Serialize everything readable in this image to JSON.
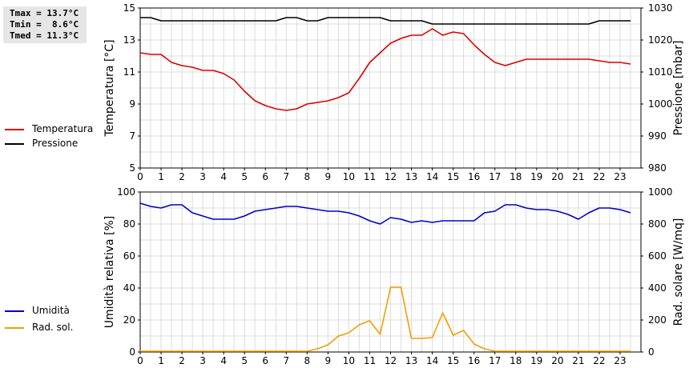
{
  "stats": {
    "tmax": "Tmax = 13.7°C",
    "tmin": "Tmin =  8.6°C",
    "tmed": "Tmed = 11.3°C"
  },
  "chart_data": [
    {
      "type": "line",
      "x_ticks": [
        "0",
        "1",
        "2",
        "3",
        "4",
        "5",
        "6",
        "7",
        "8",
        "9",
        "10",
        "11",
        "12",
        "13",
        "14",
        "15",
        "16",
        "17",
        "18",
        "19",
        "20",
        "21",
        "22",
        "23"
      ],
      "ylabel": "Temperatura [°C]",
      "ylabel_right": "Pressione [mbar]",
      "ylim": [
        5,
        15
      ],
      "y_ticks": [
        "5",
        "7",
        "9",
        "11",
        "13",
        "15"
      ],
      "ylim_right": [
        980,
        1030
      ],
      "y_ticks_right": [
        "980",
        "990",
        "1000",
        "1010",
        "1020",
        "1030"
      ],
      "grid": true,
      "legend": [
        {
          "label": "Temperatura",
          "color": "#dd0000"
        },
        {
          "label": "Pressione",
          "color": "#000000"
        }
      ],
      "series": [
        {
          "name": "Temperatura",
          "color": "#dd0000",
          "axis": "left",
          "x": [
            0,
            0.5,
            1,
            1.5,
            2,
            2.5,
            3,
            3.5,
            4,
            4.5,
            5,
            5.5,
            6,
            6.5,
            7,
            7.5,
            8,
            8.5,
            9,
            9.5,
            10,
            10.5,
            11,
            11.5,
            12,
            12.5,
            13,
            13.5,
            14,
            14.5,
            15,
            15.5,
            16,
            16.5,
            17,
            17.5,
            18,
            18.5,
            19,
            19.5,
            20,
            20.5,
            21,
            21.5,
            22,
            22.5,
            23,
            23.5
          ],
          "y": [
            12.2,
            12.1,
            12.1,
            11.6,
            11.4,
            11.3,
            11.1,
            11.1,
            10.9,
            10.5,
            9.8,
            9.2,
            8.9,
            8.7,
            8.6,
            8.7,
            9.0,
            9.1,
            9.2,
            9.4,
            9.7,
            10.6,
            11.6,
            12.2,
            12.8,
            13.1,
            13.3,
            13.3,
            13.7,
            13.3,
            13.5,
            13.4,
            12.7,
            12.1,
            11.6,
            11.4,
            11.6,
            11.8,
            11.8,
            11.8,
            11.8,
            11.8,
            11.8,
            11.8,
            11.7,
            11.6,
            11.6,
            11.5
          ]
        },
        {
          "name": "Pressione",
          "color": "#000000",
          "axis": "right",
          "x": [
            0,
            0.5,
            1,
            1.5,
            2,
            2.5,
            3,
            3.5,
            4,
            4.5,
            5,
            5.5,
            6,
            6.5,
            7,
            7.5,
            8,
            8.5,
            9,
            9.5,
            10,
            10.5,
            11,
            11.5,
            12,
            12.5,
            13,
            13.5,
            14,
            14.5,
            15,
            15.5,
            16,
            16.5,
            17,
            17.5,
            18,
            18.5,
            19,
            19.5,
            20,
            20.5,
            21,
            21.5,
            22,
            22.5,
            23,
            23.5
          ],
          "y": [
            1027,
            1027,
            1026,
            1026,
            1026,
            1026,
            1026,
            1026,
            1026,
            1026,
            1026,
            1026,
            1026,
            1026,
            1027,
            1027,
            1026,
            1026,
            1027,
            1027,
            1027,
            1027,
            1027,
            1027,
            1026,
            1026,
            1026,
            1026,
            1025,
            1025,
            1025,
            1025,
            1025,
            1025,
            1025,
            1025,
            1025,
            1025,
            1025,
            1025,
            1025,
            1025,
            1025,
            1025,
            1026,
            1026,
            1026,
            1026
          ]
        }
      ]
    },
    {
      "type": "line",
      "x_ticks": [
        "0",
        "1",
        "2",
        "3",
        "4",
        "5",
        "6",
        "7",
        "8",
        "9",
        "10",
        "11",
        "12",
        "13",
        "14",
        "15",
        "16",
        "17",
        "18",
        "19",
        "20",
        "21",
        "22",
        "23"
      ],
      "ylabel": "Umidità relativa [%]",
      "ylabel_right": "Rad. solare [W/mq]",
      "ylim": [
        0,
        100
      ],
      "y_ticks": [
        "0",
        "20",
        "40",
        "60",
        "80",
        "100"
      ],
      "ylim_right": [
        0,
        1000
      ],
      "y_ticks_right": [
        "0",
        "200",
        "400",
        "600",
        "800",
        "1000"
      ],
      "grid": true,
      "legend": [
        {
          "label": "Umidità",
          "color": "#0000cc"
        },
        {
          "label": "Rad. sol.",
          "color": "#f0a000"
        }
      ],
      "series": [
        {
          "name": "Umidità",
          "color": "#0000cc",
          "axis": "left",
          "x": [
            0,
            0.5,
            1,
            1.5,
            2,
            2.5,
            3,
            3.5,
            4,
            4.5,
            5,
            5.5,
            6,
            6.5,
            7,
            7.5,
            8,
            8.5,
            9,
            9.5,
            10,
            10.5,
            11,
            11.5,
            12,
            12.5,
            13,
            13.5,
            14,
            14.5,
            15,
            15.5,
            16,
            16.5,
            17,
            17.5,
            18,
            18.5,
            19,
            19.5,
            20,
            20.5,
            21,
            21.5,
            22,
            22.5,
            23,
            23.5
          ],
          "y": [
            93,
            91,
            90,
            92,
            92,
            87,
            85,
            83,
            83,
            83,
            85,
            88,
            89,
            90,
            91,
            91,
            90,
            89,
            88,
            88,
            87,
            85,
            82,
            80,
            84,
            83,
            81,
            82,
            81,
            82,
            82,
            82,
            82,
            87,
            88,
            92,
            92,
            90,
            89,
            89,
            88,
            86,
            83,
            87,
            90,
            90,
            89,
            87
          ]
        },
        {
          "name": "Rad. sol.",
          "color": "#f0a000",
          "axis": "right",
          "x": [
            0,
            0.5,
            1,
            1.5,
            2,
            2.5,
            3,
            3.5,
            4,
            4.5,
            5,
            5.5,
            6,
            6.5,
            7,
            7.5,
            8,
            8.5,
            9,
            9.5,
            10,
            10.5,
            11,
            11.5,
            12,
            12.5,
            13,
            13.5,
            14,
            14.5,
            15,
            15.5,
            16,
            16.5,
            17,
            17.5,
            18,
            18.5,
            19,
            19.5,
            20,
            20.5,
            21,
            21.5,
            22,
            22.5,
            23,
            23.5
          ],
          "y": [
            5,
            5,
            5,
            5,
            5,
            5,
            5,
            5,
            5,
            5,
            5,
            5,
            5,
            5,
            5,
            5,
            5,
            20,
            45,
            100,
            120,
            170,
            195,
            110,
            405,
            405,
            85,
            85,
            90,
            245,
            105,
            135,
            50,
            20,
            5,
            5,
            5,
            5,
            5,
            5,
            5,
            5,
            5,
            5,
            5,
            5,
            5,
            5
          ]
        }
      ]
    }
  ]
}
